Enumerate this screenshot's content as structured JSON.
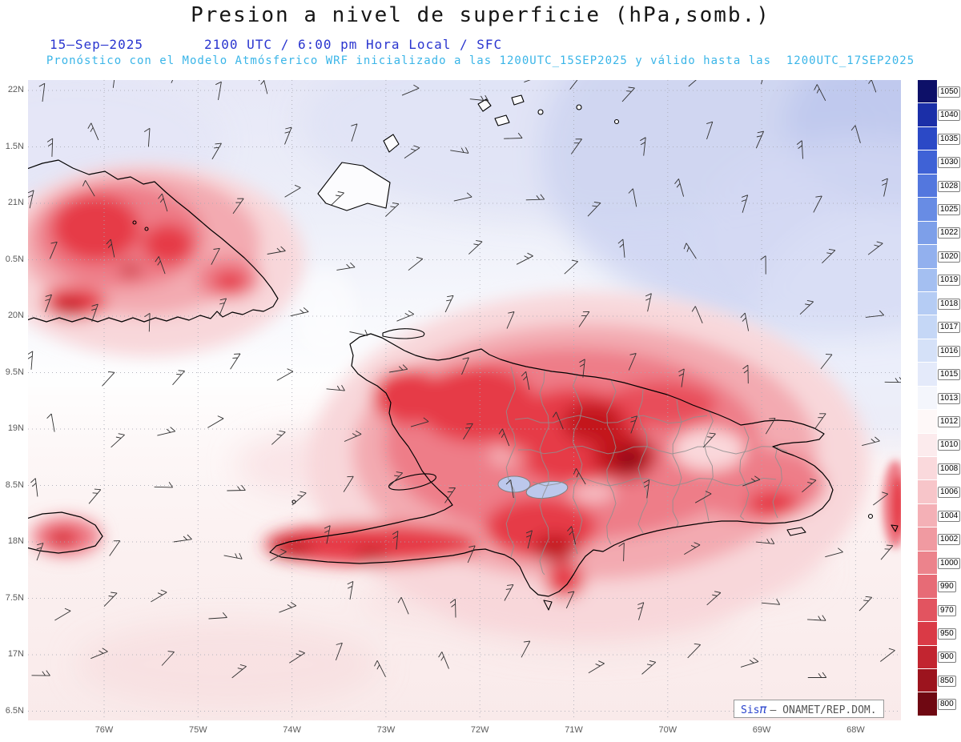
{
  "header": {
    "title": "Presion a nivel de superficie (hPa,somb.)",
    "date": "15—Sep—2025",
    "time_line": "2100 UTC / 6:00 pm Hora Local / SFC",
    "forecast_line": "Pronóstico con el Modelo Atmósferico WRF inicializado a las 1200UTC_15SEP2025 y válido hasta las  1200UTC_17SEP2025"
  },
  "axes": {
    "lat_labels": [
      "22N",
      "1.5N",
      "21N",
      "0.5N",
      "20N",
      "9.5N",
      "19N",
      "8.5N",
      "18N",
      "7.5N",
      "17N",
      "6.5N"
    ],
    "lon_labels": [
      "76W",
      "75W",
      "74W",
      "73W",
      "72W",
      "71W",
      "70W",
      "69W",
      "68W"
    ]
  },
  "colorbar": {
    "values": [
      1050,
      1040,
      1035,
      1030,
      1028,
      1025,
      1022,
      1020,
      1019,
      1018,
      1017,
      1016,
      1015,
      1013,
      1012,
      1010,
      1008,
      1006,
      1004,
      1002,
      1000,
      990,
      970,
      950,
      900,
      850,
      800
    ],
    "colors": [
      "#0d1068",
      "#1b2fa8",
      "#2b49c6",
      "#3f62d6",
      "#5377de",
      "#688ce4",
      "#7d9fe9",
      "#92b0ee",
      "#a4bff1",
      "#b5ccf4",
      "#c5d7f6",
      "#d5e1f8",
      "#e4eafa",
      "#f4f6fc",
      "#fef8f8",
      "#fcebed",
      "#fad9dc",
      "#f7c5c9",
      "#f4b0b6",
      "#f09aa1",
      "#ec838c",
      "#e76b76",
      "#e25460",
      "#da3a46",
      "#c22530",
      "#9c141e",
      "#6f0812"
    ]
  },
  "watermark": {
    "brand": "Sis",
    "pi": "π",
    "suffix": "– ONAMET/REP.DOM."
  }
}
